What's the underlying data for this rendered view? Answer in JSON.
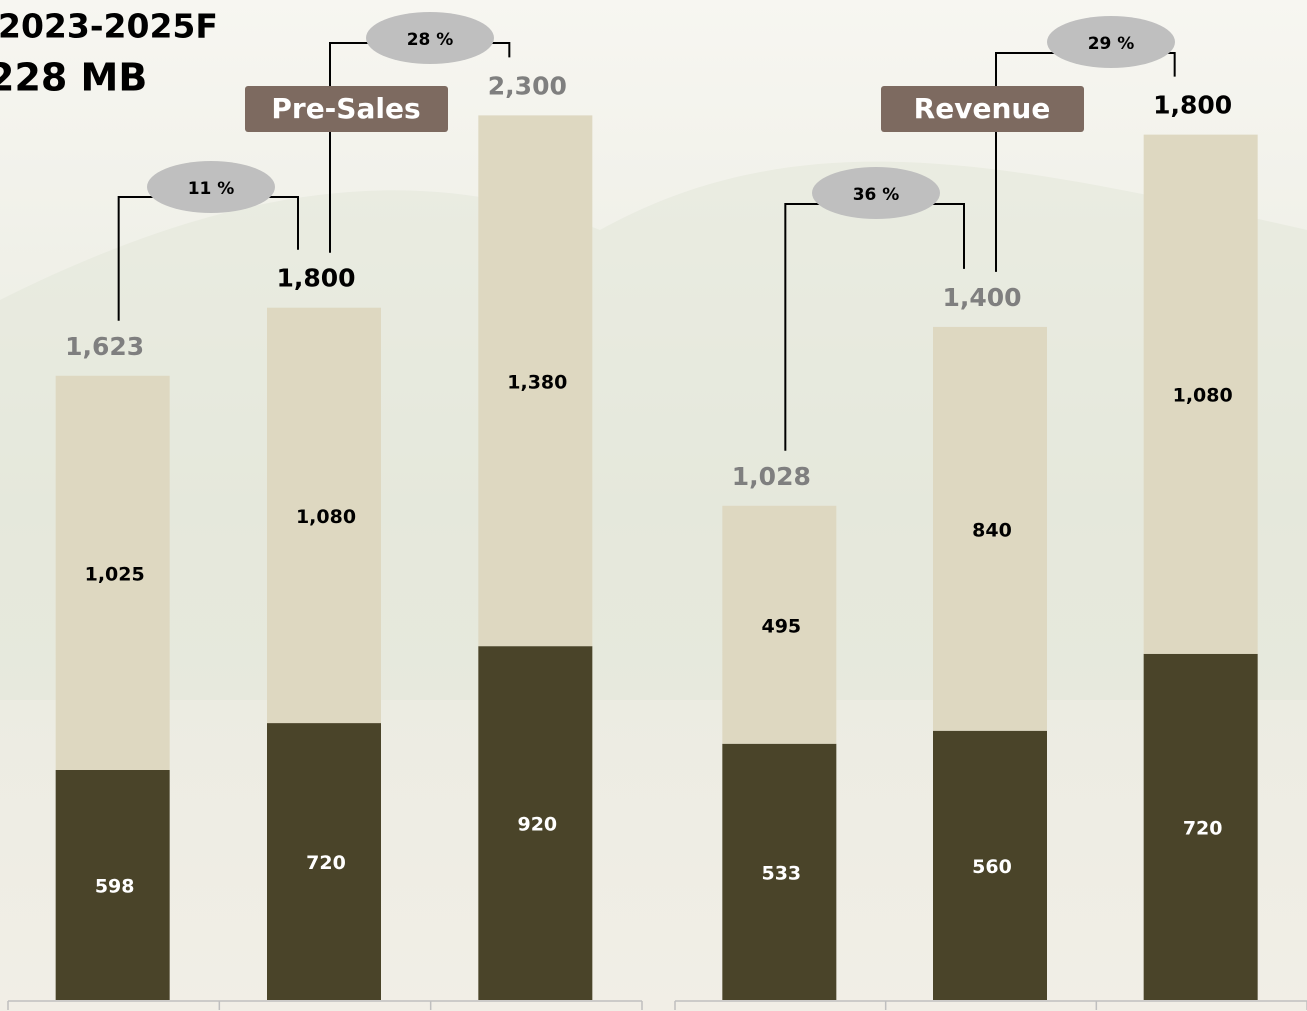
{
  "header": {
    "lines": [
      "2023-2025F",
      "228 MB"
    ]
  },
  "chart_data": [
    {
      "type": "bar",
      "stacked": true,
      "title": "Pre-Sales",
      "categories": [
        null,
        null,
        null
      ],
      "ylim": [
        0,
        2600
      ],
      "series": [
        {
          "color": "#4a4429",
          "label_color": "#ffffff",
          "values": [
            598,
            720,
            920
          ],
          "value_labels": [
            "598",
            "720",
            "920"
          ]
        },
        {
          "color": "#ded8c1",
          "label_color": "#000000",
          "values": [
            1025,
            1080,
            1380
          ],
          "value_labels": [
            "1,025",
            "1,080",
            "1,380"
          ]
        }
      ],
      "totals": [
        1623,
        1800,
        2300
      ],
      "total_labels": [
        "1,623",
        "1,800",
        "2,300"
      ],
      "total_colors": [
        "#7f7f7f",
        "#000000",
        "#7f7f7f"
      ],
      "annotations": [
        "11 %",
        "28 %"
      ]
    },
    {
      "type": "bar",
      "stacked": true,
      "title": "Revenue",
      "categories": [
        null,
        null,
        null
      ],
      "ylim": [
        0,
        2080
      ],
      "series": [
        {
          "color": "#4a4429",
          "label_color": "#ffffff",
          "values": [
            533,
            560,
            720
          ],
          "value_labels": [
            "533",
            "560",
            "720"
          ]
        },
        {
          "color": "#ded8c1",
          "label_color": "#000000",
          "values": [
            495,
            840,
            1080
          ],
          "value_labels": [
            "495",
            "840",
            "1,080"
          ]
        }
      ],
      "totals": [
        1028,
        1400,
        1800
      ],
      "total_labels": [
        "1,028",
        "1,400",
        "1,800"
      ],
      "total_colors": [
        "#7f7f7f",
        "#7f7f7f",
        "#000000"
      ],
      "annotations": [
        "36 %",
        "29 %"
      ]
    }
  ]
}
